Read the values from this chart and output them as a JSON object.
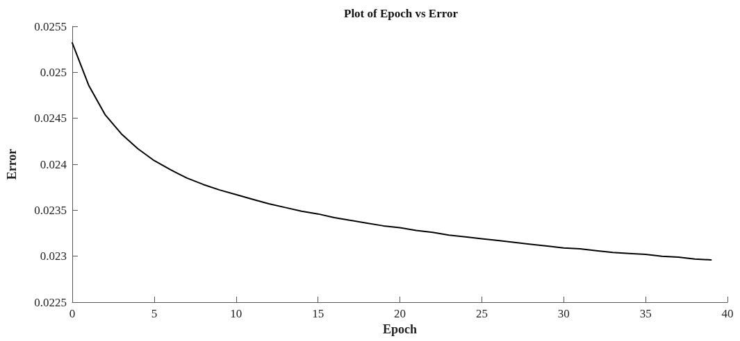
{
  "chart_data": {
    "type": "line",
    "title": "Plot of Epoch vs Error",
    "xlabel": "Epoch",
    "ylabel": "Error",
    "x": [
      0,
      1,
      2,
      3,
      4,
      5,
      6,
      7,
      8,
      9,
      10,
      11,
      12,
      13,
      14,
      15,
      16,
      17,
      18,
      19,
      20,
      21,
      22,
      23,
      24,
      25,
      26,
      27,
      28,
      29,
      30,
      31,
      32,
      33,
      34,
      35,
      36,
      37,
      38,
      39
    ],
    "series": [
      {
        "color": "#000000",
        "values": [
          0.02532,
          0.02486,
          0.02454,
          0.02433,
          0.02417,
          0.02404,
          0.02394,
          0.02385,
          0.02378,
          0.02372,
          0.02367,
          0.02362,
          0.02357,
          0.02353,
          0.02349,
          0.02346,
          0.02342,
          0.02339,
          0.02336,
          0.02333,
          0.02331,
          0.02328,
          0.02326,
          0.02323,
          0.02321,
          0.02319,
          0.02317,
          0.02315,
          0.02313,
          0.02311,
          0.02309,
          0.02308,
          0.02306,
          0.02304,
          0.02303,
          0.02302,
          0.023,
          0.02299,
          0.02297,
          0.02296
        ]
      }
    ],
    "xlim": [
      0,
      40
    ],
    "xticks": [
      0,
      5,
      10,
      15,
      20,
      25,
      30,
      35,
      40
    ],
    "ylim": [
      0.0225,
      0.0255
    ],
    "yticks": [
      0.0225,
      0.023,
      0.0235,
      0.024,
      0.0245,
      0.025,
      0.0255
    ],
    "grid": false,
    "marker": "none",
    "line_style": "solid"
  }
}
